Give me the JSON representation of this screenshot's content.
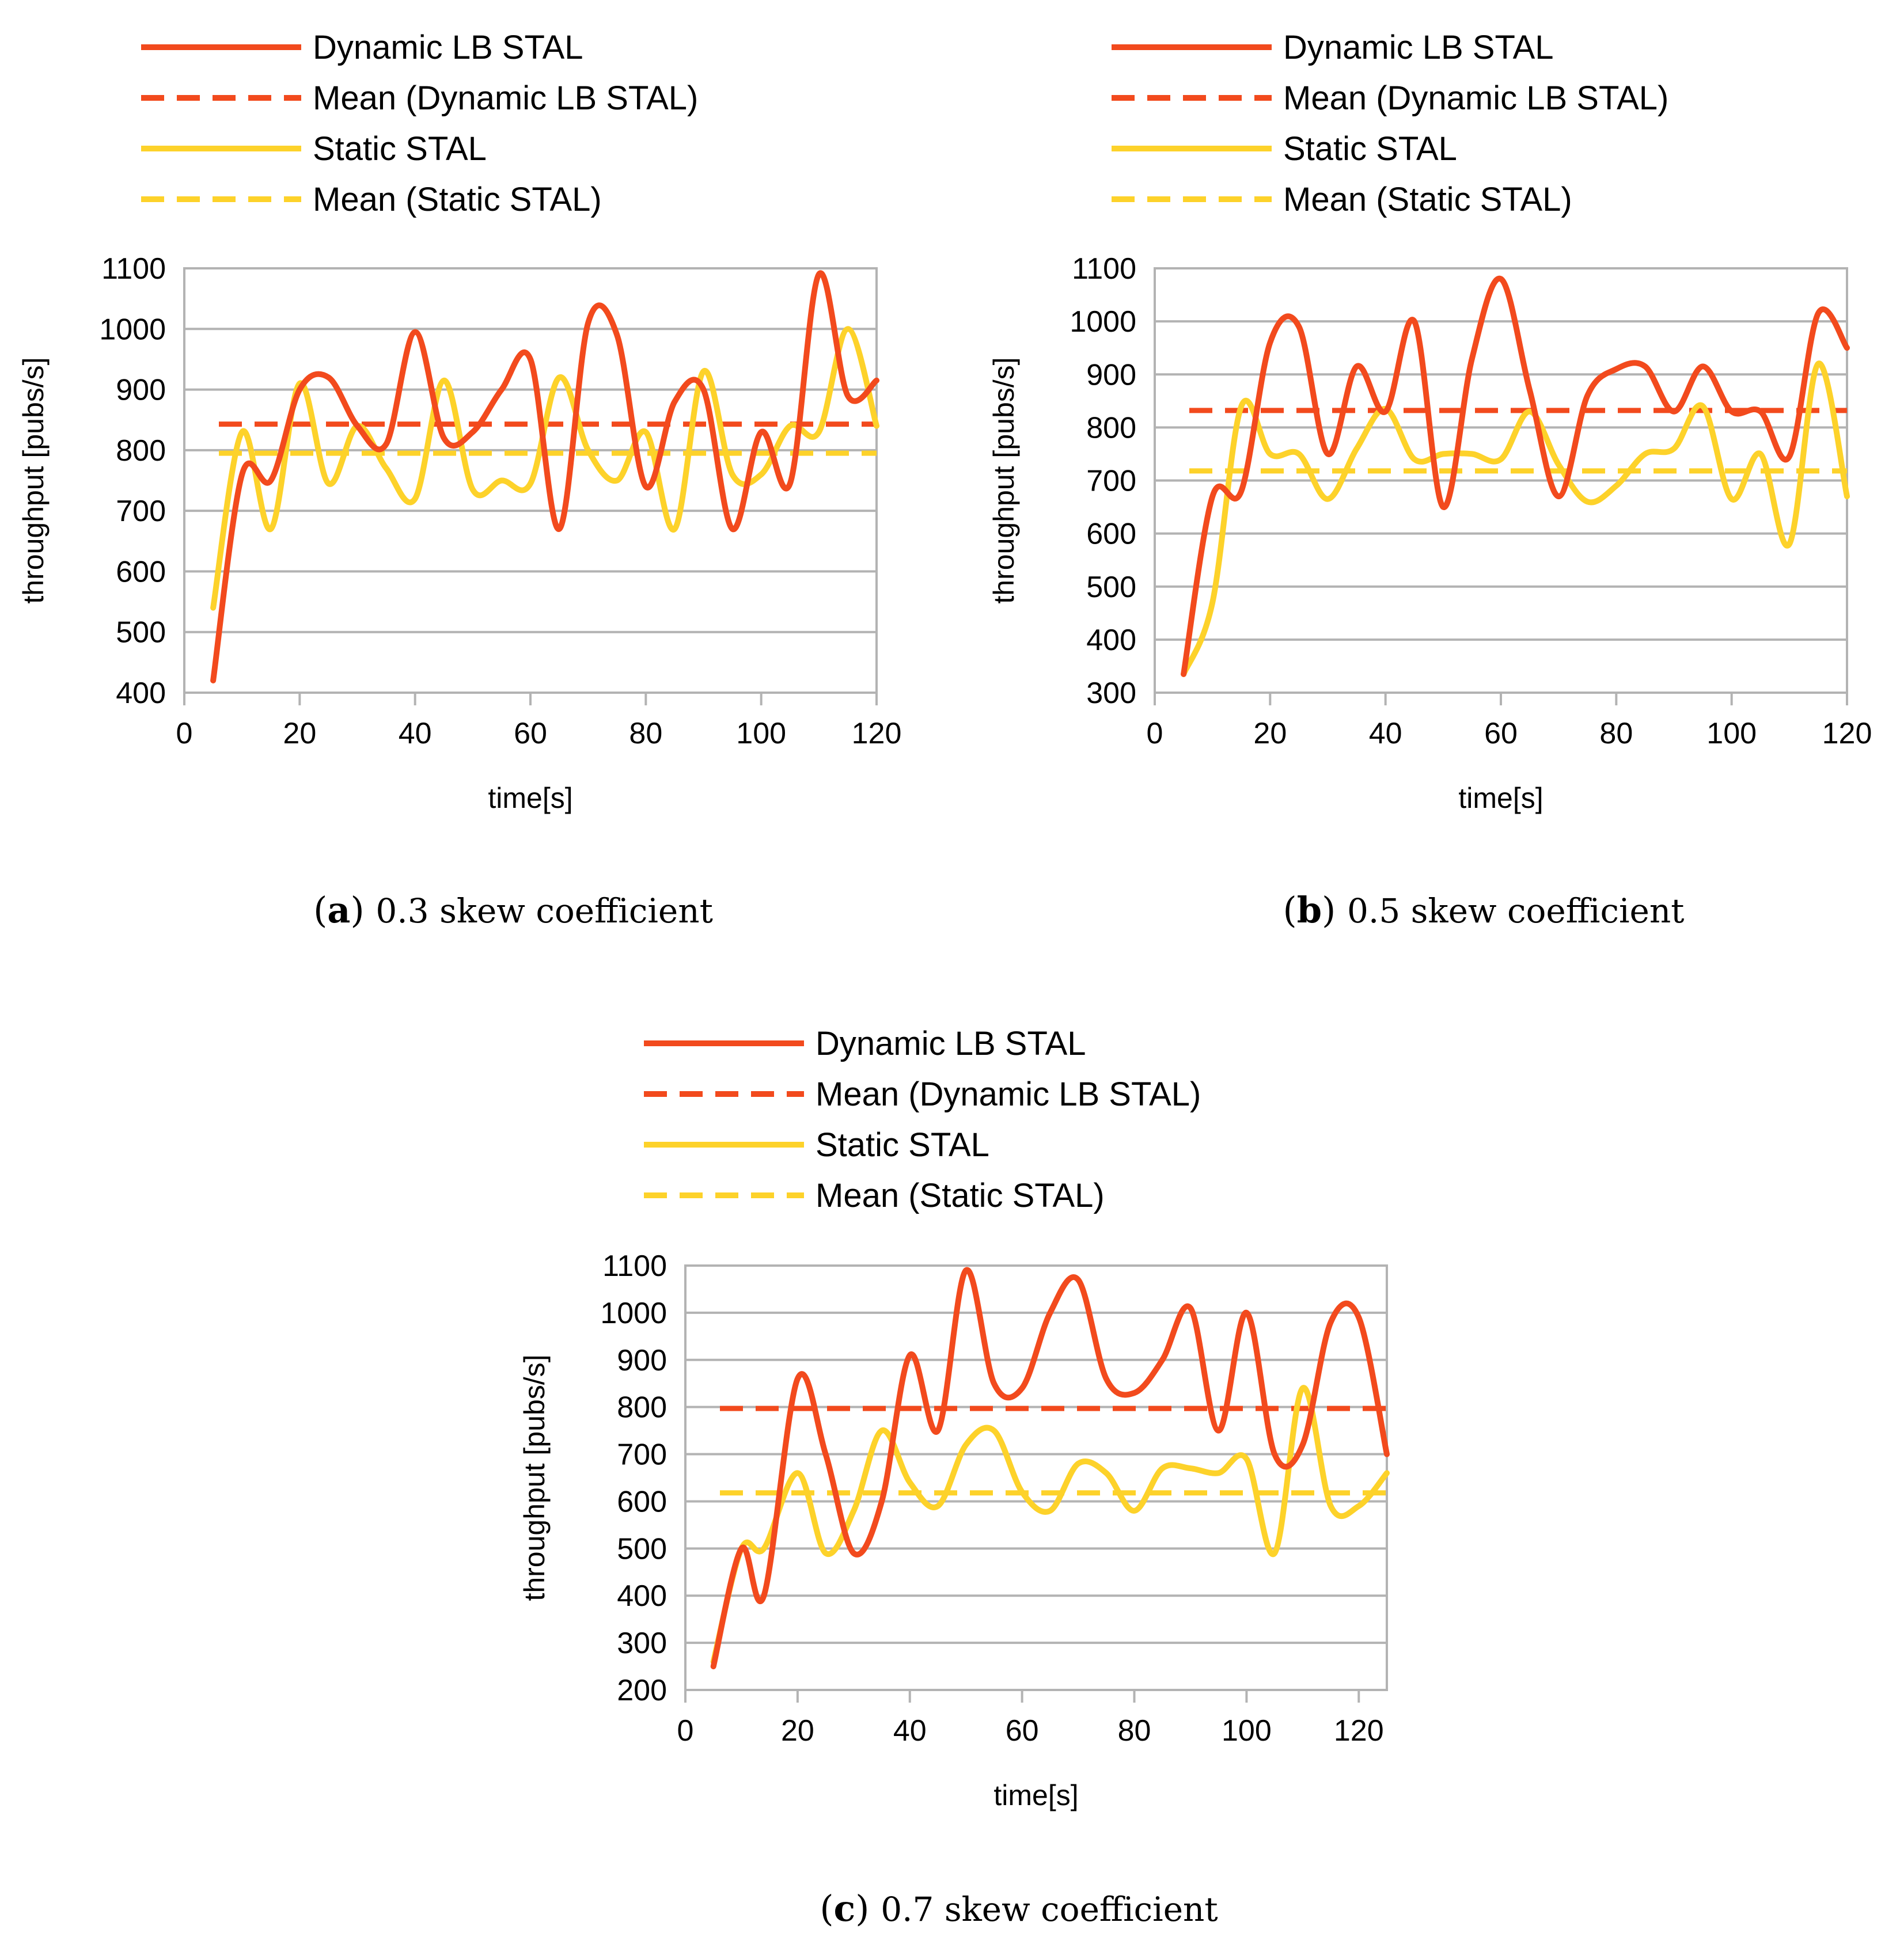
{
  "colors": {
    "dynamic": "#f24a1d",
    "static": "#fdd22a",
    "grid": "#b3b3b3"
  },
  "chart_data": [
    {
      "type": "line",
      "panel": "a",
      "caption_label": "a",
      "caption_text": "0.3 skew coefficient",
      "xlabel": "time[s]",
      "ylabel": "throughput [pubs/s]",
      "xlim": [
        0,
        120
      ],
      "ylim": [
        400,
        1100
      ],
      "xticks": [
        0,
        20,
        40,
        60,
        80,
        100,
        120
      ],
      "yticks": [
        400,
        500,
        600,
        700,
        800,
        900,
        1000,
        1100
      ],
      "legend_position": "top-left",
      "legend": [
        "Dynamic LB STAL",
        "Mean (Dynamic LB STAL)",
        "Static STAL",
        "Mean (Static STAL)"
      ],
      "series": [
        {
          "name": "Dynamic LB STAL",
          "x": [
            5,
            10,
            15,
            20,
            25,
            30,
            35,
            40,
            45,
            50,
            55,
            60,
            65,
            70,
            75,
            80,
            85,
            90,
            95,
            100,
            105,
            110,
            115,
            120
          ],
          "values": [
            420,
            760,
            750,
            900,
            920,
            840,
            810,
            995,
            820,
            830,
            900,
            950,
            670,
            1010,
            990,
            740,
            880,
            900,
            670,
            830,
            745,
            1090,
            890,
            915
          ]
        },
        {
          "name": "Static STAL",
          "x": [
            5,
            10,
            15,
            20,
            25,
            30,
            35,
            40,
            45,
            50,
            55,
            60,
            65,
            70,
            75,
            80,
            85,
            90,
            95,
            100,
            105,
            110,
            115,
            120
          ],
          "values": [
            540,
            830,
            670,
            910,
            745,
            840,
            770,
            720,
            915,
            735,
            750,
            745,
            920,
            800,
            750,
            830,
            670,
            930,
            760,
            760,
            840,
            830,
            1000,
            840
          ]
        }
      ],
      "means": {
        "Mean (Dynamic LB STAL)": 843,
        "Mean (Static STAL)": 795
      }
    },
    {
      "type": "line",
      "panel": "b",
      "caption_label": "b",
      "caption_text": "0.5 skew coefficient",
      "xlabel": "time[s]",
      "ylabel": "throughput [pubs/s]",
      "xlim": [
        0,
        120
      ],
      "ylim": [
        300,
        1100
      ],
      "xticks": [
        0,
        20,
        40,
        60,
        80,
        100,
        120
      ],
      "yticks": [
        300,
        400,
        500,
        600,
        700,
        800,
        900,
        1000,
        1100
      ],
      "legend_position": "top-left",
      "legend": [
        "Dynamic LB STAL",
        "Mean (Dynamic LB STAL)",
        "Static STAL",
        "Mean (Static STAL)"
      ],
      "series": [
        {
          "name": "Dynamic LB STAL",
          "x": [
            5,
            10,
            15,
            20,
            25,
            30,
            35,
            40,
            45,
            50,
            55,
            60,
            65,
            70,
            75,
            80,
            85,
            90,
            95,
            100,
            105,
            110,
            115,
            120
          ],
          "values": [
            335,
            670,
            680,
            960,
            990,
            750,
            915,
            830,
            1000,
            650,
            930,
            1080,
            870,
            670,
            860,
            910,
            915,
            830,
            915,
            830,
            830,
            745,
            1015,
            950
          ]
        },
        {
          "name": "Static STAL",
          "x": [
            5,
            10,
            15,
            20,
            25,
            30,
            35,
            40,
            45,
            50,
            55,
            60,
            65,
            70,
            75,
            80,
            85,
            90,
            95,
            100,
            105,
            110,
            115,
            120
          ],
          "values": [
            335,
            470,
            840,
            750,
            750,
            665,
            760,
            835,
            740,
            750,
            750,
            740,
            830,
            730,
            660,
            690,
            750,
            760,
            840,
            665,
            750,
            580,
            920,
            670
          ]
        }
      ],
      "means": {
        "Mean (Dynamic LB STAL)": 832,
        "Mean (Static STAL)": 718
      }
    },
    {
      "type": "line",
      "panel": "c",
      "caption_label": "c",
      "caption_text": "0.7 skew coefficient",
      "xlabel": "time[s]",
      "ylabel": "throughput [pubs/s]",
      "xlim": [
        0,
        125
      ],
      "ylim": [
        200,
        1100
      ],
      "xticks": [
        0,
        20,
        40,
        60,
        80,
        100,
        120
      ],
      "yticks": [
        200,
        300,
        400,
        500,
        600,
        700,
        800,
        900,
        1000,
        1100
      ],
      "legend_position": "top-left",
      "legend": [
        "Dynamic LB STAL",
        "Mean (Dynamic LB STAL)",
        "Static STAL",
        "Mean (Static STAL)"
      ],
      "series": [
        {
          "name": "Dynamic LB STAL",
          "x": [
            5,
            10,
            14,
            20,
            25,
            30,
            35,
            40,
            45,
            50,
            55,
            60,
            65,
            70,
            75,
            80,
            85,
            90,
            95,
            100,
            105,
            110,
            115,
            120,
            125
          ],
          "values": [
            250,
            500,
            400,
            860,
            700,
            490,
            600,
            910,
            750,
            1090,
            850,
            840,
            1000,
            1070,
            860,
            830,
            900,
            1010,
            750,
            1000,
            700,
            720,
            980,
            990,
            700
          ]
        },
        {
          "name": "Static STAL",
          "x": [
            5,
            10,
            14,
            20,
            25,
            30,
            35,
            40,
            45,
            50,
            55,
            60,
            65,
            70,
            75,
            80,
            85,
            90,
            95,
            100,
            105,
            110,
            115,
            120,
            125
          ],
          "values": [
            260,
            500,
            500,
            660,
            490,
            580,
            750,
            640,
            590,
            720,
            750,
            620,
            580,
            680,
            660,
            580,
            670,
            670,
            660,
            690,
            490,
            840,
            590,
            590,
            660
          ]
        }
      ],
      "means": {
        "Mean (Dynamic LB STAL)": 797,
        "Mean (Static STAL)": 618
      }
    }
  ]
}
